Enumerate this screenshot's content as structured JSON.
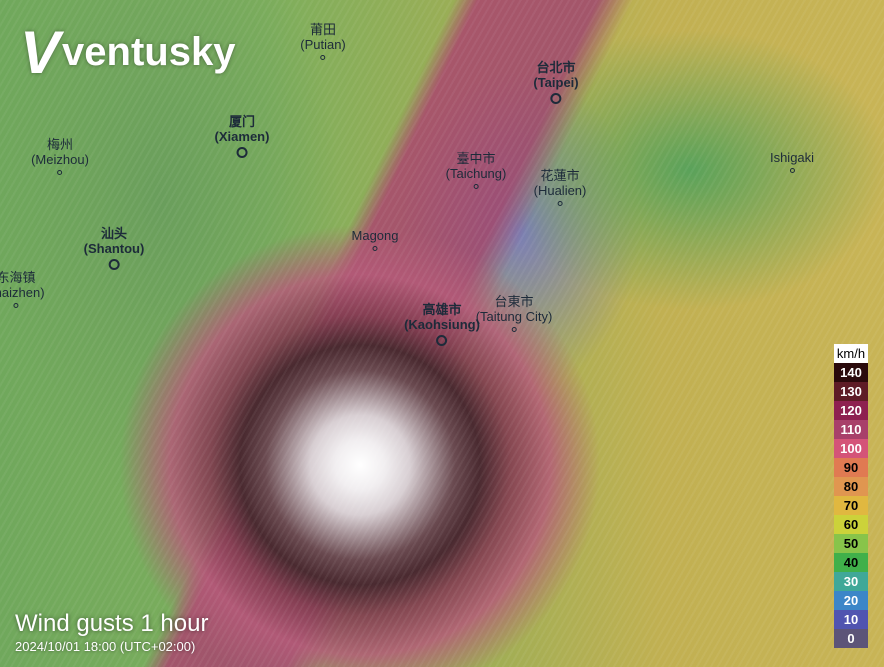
{
  "brand": "ventusky",
  "layer": {
    "title": "Wind gusts 1 hour",
    "timestamp": "2024/10/01 18:00 (UTC+02:00)"
  },
  "cities": [
    {
      "name": "莆田",
      "latin": "(Putian)",
      "major": false
    },
    {
      "name": "厦门",
      "latin": "(Xiamen)",
      "major": true
    },
    {
      "name": "梅州",
      "latin": "(Meizhou)",
      "major": false
    },
    {
      "name": "汕头",
      "latin": "(Shantou)",
      "major": true
    },
    {
      "name": "东海镇",
      "latin": "ghaizhen)",
      "major": false
    },
    {
      "name": "",
      "latin": "Magong",
      "major": false
    },
    {
      "name": "高雄市",
      "latin": "(Kaohsiung)",
      "major": true
    },
    {
      "name": "臺中市",
      "latin": "(Taichung)",
      "major": false
    },
    {
      "name": "台北市",
      "latin": "(Taipei)",
      "major": true
    },
    {
      "name": "花蓮市",
      "latin": "(Hualien)",
      "major": false
    },
    {
      "name": "台東市",
      "latin": "(Taitung City)",
      "major": false
    },
    {
      "name": "",
      "latin": "Ishigaki",
      "major": false
    }
  ],
  "legend": {
    "unit": "km/h",
    "items": [
      {
        "v": "140",
        "c": "#2a0a0c",
        "t": "#fff"
      },
      {
        "v": "130",
        "c": "#5e1c26",
        "t": "#fff"
      },
      {
        "v": "120",
        "c": "#8e2050",
        "t": "#fff"
      },
      {
        "v": "110",
        "c": "#a8406a",
        "t": "#fff"
      },
      {
        "v": "100",
        "c": "#d45478",
        "t": "#fff"
      },
      {
        "v": "90",
        "c": "#e07a52",
        "t": "#000"
      },
      {
        "v": "80",
        "c": "#e09650",
        "t": "#000"
      },
      {
        "v": "70",
        "c": "#e0b840",
        "t": "#000"
      },
      {
        "v": "60",
        "c": "#ccd23a",
        "t": "#000"
      },
      {
        "v": "50",
        "c": "#88c44a",
        "t": "#000"
      },
      {
        "v": "40",
        "c": "#40b04a",
        "t": "#000"
      },
      {
        "v": "30",
        "c": "#40a898",
        "t": "#fff"
      },
      {
        "v": "20",
        "c": "#3c86c8",
        "t": "#fff"
      },
      {
        "v": "10",
        "c": "#5054b0",
        "t": "#fff"
      },
      {
        "v": "0",
        "c": "#5c5478",
        "t": "#fff"
      }
    ]
  }
}
